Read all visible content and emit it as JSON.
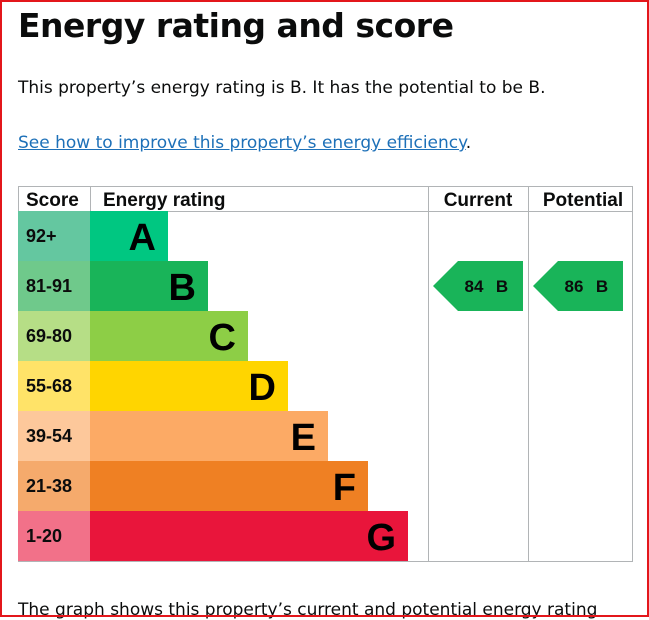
{
  "page": {
    "title": "Energy rating and score",
    "summary": "This property’s energy rating is B. It has the potential to be B.",
    "improve_link": "See how to improve this property’s energy efficiency",
    "improve_suffix": ".",
    "footer": "The graph shows this property’s current and potential energy rating"
  },
  "table": {
    "headers": {
      "score": "Score",
      "rating": "Energy rating",
      "current": "Current",
      "potential": "Potential"
    },
    "bands": [
      {
        "range": "92+",
        "letter": "A",
        "bar_color": "#00c781",
        "score_color": "#64c7a0"
      },
      {
        "range": "81-91",
        "letter": "B",
        "bar_color": "#19b459",
        "score_color": "#6fc98b"
      },
      {
        "range": "69-80",
        "letter": "C",
        "bar_color": "#8dce46",
        "score_color": "#b6de86"
      },
      {
        "range": "55-68",
        "letter": "D",
        "bar_color": "#ffd500",
        "score_color": "#ffe368"
      },
      {
        "range": "39-54",
        "letter": "E",
        "bar_color": "#fcaa65",
        "score_color": "#fdc89b"
      },
      {
        "range": "21-38",
        "letter": "F",
        "bar_color": "#ef8023",
        "score_color": "#f5aa6c"
      },
      {
        "range": "1-20",
        "letter": "G",
        "bar_color": "#e9153b",
        "score_color": "#f27189"
      }
    ],
    "current": {
      "score": "84",
      "letter": "B",
      "color": "#19b459"
    },
    "potential": {
      "score": "86",
      "letter": "B",
      "color": "#19b459"
    },
    "grid_color": "#b1b4b6"
  }
}
